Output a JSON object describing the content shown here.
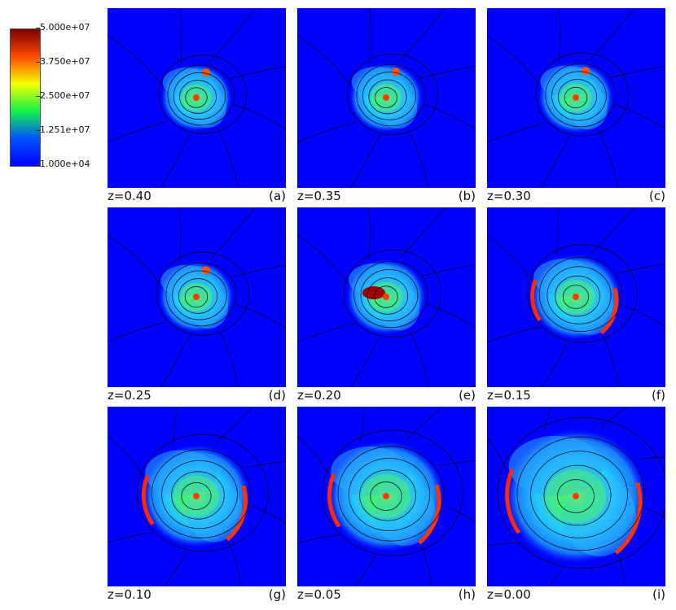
{
  "colorbar": {
    "ticks": [
      "5.000e+07",
      "3.750e+07",
      "2.500e+07",
      "1.251e+07",
      "1.000e+04"
    ],
    "colors": [
      "#7a0000",
      "#ff4a00",
      "#f2ff00",
      "#12f24a",
      "#0052ff",
      "#0000ff"
    ]
  },
  "panels": [
    {
      "z_label": "z=0.40",
      "tag": "(a)",
      "size": 0.34
    },
    {
      "z_label": "z=0.35",
      "tag": "(b)",
      "size": 0.35
    },
    {
      "z_label": "z=0.30",
      "tag": "(c)",
      "size": 0.36
    },
    {
      "z_label": "z=0.25",
      "tag": "(d)",
      "size": 0.36
    },
    {
      "z_label": "z=0.20",
      "tag": "(e)",
      "size": 0.38
    },
    {
      "z_label": "z=0.15",
      "tag": "(f)",
      "size": 0.43
    },
    {
      "z_label": "z=0.10",
      "tag": "(g)",
      "size": 0.52
    },
    {
      "z_label": "z=0.05",
      "tag": "(h)",
      "size": 0.56
    },
    {
      "z_label": "z=0.00",
      "tag": "(i)",
      "size": 0.68
    }
  ]
}
